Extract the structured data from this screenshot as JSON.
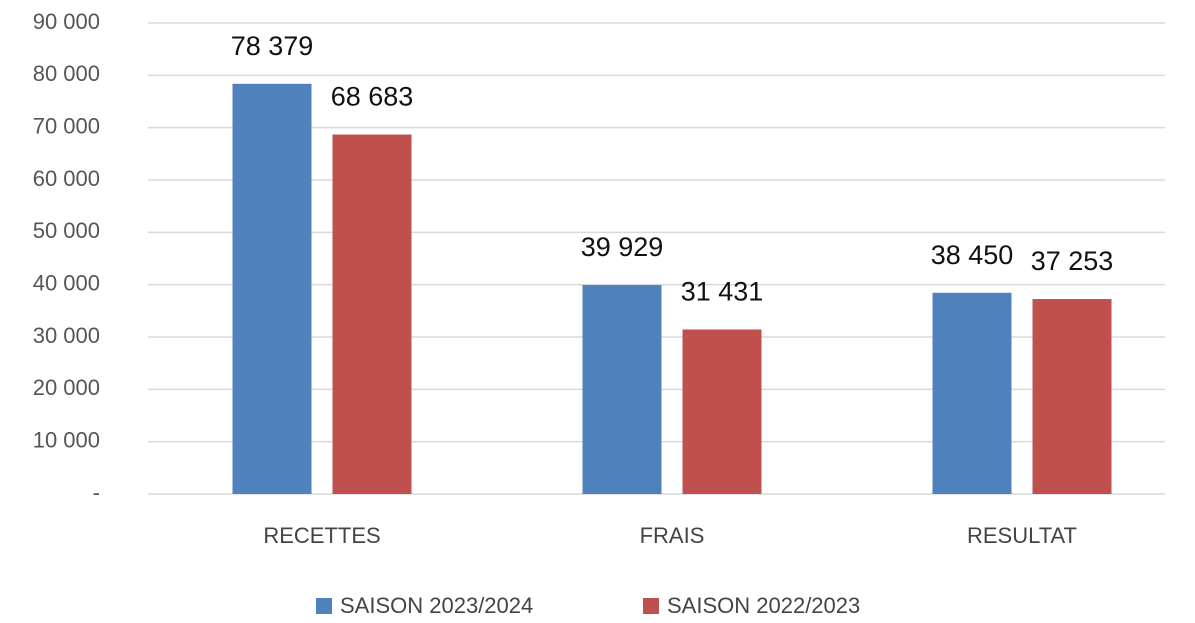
{
  "chart_data": {
    "type": "bar",
    "categories": [
      "RECETTES",
      "FRAIS",
      "RESULTAT"
    ],
    "series": [
      {
        "name": "SAISON 2023/2024",
        "color": "#4f81bd",
        "values": [
          78379,
          39929,
          38450
        ],
        "value_labels": [
          "78 379",
          "39 929",
          "38 450"
        ]
      },
      {
        "name": "SAISON 2022/2023",
        "color": "#c0504d",
        "values": [
          68683,
          31431,
          37253
        ],
        "value_labels": [
          "68 683",
          "31 431",
          "37 253"
        ]
      }
    ],
    "ylim": [
      0,
      90000
    ],
    "yticks": [
      {
        "value": 0,
        "label": "-"
      },
      {
        "value": 10000,
        "label": "10 000"
      },
      {
        "value": 20000,
        "label": "20 000"
      },
      {
        "value": 30000,
        "label": "30 000"
      },
      {
        "value": 40000,
        "label": "40 000"
      },
      {
        "value": 50000,
        "label": "50 000"
      },
      {
        "value": 60000,
        "label": "60 000"
      },
      {
        "value": 70000,
        "label": "70 000"
      },
      {
        "value": 80000,
        "label": "80 000"
      },
      {
        "value": 90000,
        "label": "90 000"
      }
    ],
    "grid": true,
    "legend": "bottom"
  }
}
